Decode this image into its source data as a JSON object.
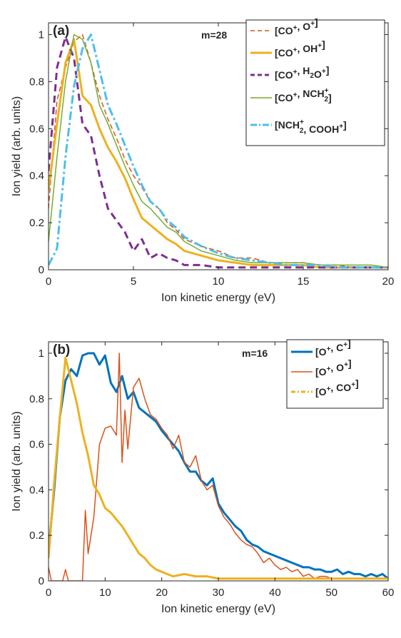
{
  "chart_data": [
    {
      "type": "line",
      "panel_label": "(a)",
      "annotation": "m=28",
      "xlabel": "Ion kinetic energy (eV)",
      "ylabel": "Ion yield (arb. units)",
      "xlim": [
        0,
        20
      ],
      "ylim": [
        0,
        1.05
      ],
      "xticks": [
        "0",
        "5",
        "10",
        "15",
        "20"
      ],
      "yticks": [
        "0",
        "0.2",
        "0.4",
        "0.6",
        "0.8",
        "1"
      ],
      "grid": false,
      "legend_position": "top-right",
      "series": [
        {
          "name": "[CO⁺, O⁺]",
          "legend": [
            [
              "[CO",
              ""
            ],
            [
              "+",
              "sup"
            ],
            [
              ", O",
              ""
            ],
            [
              "+",
              "sup"
            ],
            [
              "]",
              ""
            ]
          ],
          "color": "#D95319",
          "style": "dashed",
          "width": 1.5,
          "x": [
            0,
            0.5,
            1,
            1.5,
            2,
            2.5,
            3,
            3.5,
            4,
            4.5,
            5,
            5.5,
            6,
            6.5,
            7,
            7.5,
            8,
            9,
            10,
            11,
            12,
            13,
            14,
            15,
            16,
            17,
            18,
            19,
            20
          ],
          "y": [
            0.26,
            0.72,
            0.86,
            0.97,
            1.0,
            0.88,
            0.74,
            0.64,
            0.56,
            0.47,
            0.4,
            0.35,
            0.29,
            0.26,
            0.2,
            0.17,
            0.13,
            0.1,
            0.08,
            0.05,
            0.05,
            0.03,
            0.03,
            0.03,
            0.02,
            0.02,
            0.01,
            0.01,
            0.01
          ]
        },
        {
          "name": "[CO⁺, OH⁺]",
          "legend": [
            [
              "[CO",
              ""
            ],
            [
              "+",
              "sup"
            ],
            [
              ", OH",
              ""
            ],
            [
              "+",
              "sup"
            ],
            [
              "]",
              ""
            ]
          ],
          "color": "#EDB120",
          "style": "solid",
          "width": 3,
          "x": [
            0,
            0.5,
            1,
            1.5,
            2,
            2.5,
            3,
            3.5,
            4,
            4.5,
            5,
            5.5,
            6,
            6.5,
            7,
            7.5,
            8,
            9,
            10,
            11,
            12,
            13,
            14,
            15,
            16,
            17,
            18,
            19,
            20
          ],
          "y": [
            0.34,
            0.62,
            0.88,
            0.98,
            0.74,
            0.7,
            0.6,
            0.52,
            0.46,
            0.39,
            0.3,
            0.22,
            0.19,
            0.16,
            0.13,
            0.11,
            0.08,
            0.06,
            0.04,
            0.03,
            0.02,
            0.02,
            0.02,
            0.02,
            0.01,
            0.01,
            0.01,
            0.01,
            0.01
          ]
        },
        {
          "name": "[CO⁺, H₂O⁺]",
          "legend": [
            [
              "[CO",
              ""
            ],
            [
              "+",
              "sup"
            ],
            [
              ", H",
              ""
            ],
            [
              "2",
              "sub"
            ],
            [
              "O",
              ""
            ],
            [
              "+",
              "sup"
            ],
            [
              "]",
              ""
            ]
          ],
          "color": "#7E2F8E",
          "style": "dashed-heavy",
          "width": 3,
          "x": [
            0,
            0.5,
            1,
            1.5,
            2,
            2.5,
            3,
            3.5,
            4,
            4.5,
            5,
            5.5,
            6,
            6.5,
            7,
            7.5,
            8,
            9,
            10,
            11,
            12,
            13,
            14,
            15,
            16,
            17,
            18,
            19,
            20
          ],
          "y": [
            0.42,
            0.86,
            0.99,
            0.9,
            0.62,
            0.57,
            0.4,
            0.26,
            0.21,
            0.16,
            0.08,
            0.13,
            0.05,
            0.07,
            0.05,
            0.04,
            0.02,
            0.02,
            0.01,
            0.01,
            0.01,
            0.01,
            0.01,
            0.01,
            0.01,
            0.01,
            0.01,
            0.01,
            0.01
          ]
        },
        {
          "name": "[CO⁺, NCH₂⁺]",
          "legend": [
            [
              "[CO",
              ""
            ],
            [
              "+",
              "sup"
            ],
            [
              ", NCH",
              ""
            ],
            [
              "+",
              "subsup",
              "2"
            ],
            [
              "]",
              ""
            ]
          ],
          "color": "#77AC30",
          "style": "solid",
          "width": 1.5,
          "x": [
            0,
            0.5,
            1,
            1.5,
            2,
            2.5,
            3,
            3.5,
            4,
            4.5,
            5,
            5.5,
            6,
            6.5,
            7,
            7.5,
            8,
            9,
            10,
            11,
            12,
            13,
            14,
            15,
            16,
            17,
            18,
            19,
            20
          ],
          "y": [
            0.12,
            0.48,
            0.8,
            1.0,
            0.98,
            0.88,
            0.7,
            0.62,
            0.53,
            0.44,
            0.36,
            0.29,
            0.26,
            0.22,
            0.18,
            0.16,
            0.12,
            0.08,
            0.06,
            0.04,
            0.03,
            0.03,
            0.03,
            0.03,
            0.02,
            0.02,
            0.02,
            0.02,
            0.01
          ]
        },
        {
          "name": "[NCH₂⁺, COOH⁺]",
          "legend": [
            [
              "[NCH",
              ""
            ],
            [
              "+",
              "subsup",
              "2"
            ],
            [
              ", COOH",
              ""
            ],
            [
              "+",
              "sup"
            ],
            [
              "]",
              ""
            ]
          ],
          "color": "#4DBEEE",
          "style": "dashdot",
          "width": 3,
          "x": [
            0,
            0.5,
            1,
            1.5,
            2,
            2.5,
            3,
            3.5,
            4,
            4.5,
            5,
            5.5,
            6,
            6.5,
            7,
            7.5,
            8,
            9,
            10,
            11,
            12,
            13,
            14,
            15,
            16,
            17,
            18,
            19,
            20
          ],
          "y": [
            0.02,
            0.09,
            0.48,
            0.78,
            0.94,
            1.0,
            0.85,
            0.7,
            0.62,
            0.53,
            0.44,
            0.36,
            0.29,
            0.26,
            0.21,
            0.18,
            0.14,
            0.1,
            0.07,
            0.05,
            0.04,
            0.03,
            0.02,
            0.02,
            0.02,
            0.01,
            0.01,
            0.01,
            0.01
          ]
        }
      ]
    },
    {
      "type": "line",
      "panel_label": "(b)",
      "annotation": "m=16",
      "xlabel": "Ion kinetic energy (eV)",
      "ylabel": "Ion yield (arb. units)",
      "xlim": [
        0,
        60
      ],
      "ylim": [
        0,
        1.05
      ],
      "xticks": [
        "0",
        "10",
        "20",
        "30",
        "40",
        "50",
        "60"
      ],
      "yticks": [
        "0",
        "0.2",
        "0.4",
        "0.6",
        "0.8",
        "1"
      ],
      "grid": false,
      "legend_position": "top-right",
      "series": [
        {
          "name": "[O⁺, C⁺]",
          "legend": [
            [
              "[O",
              ""
            ],
            [
              "+",
              "sup"
            ],
            [
              ", C",
              ""
            ],
            [
              "+",
              "sup"
            ],
            [
              "]",
              ""
            ]
          ],
          "color": "#0072BD",
          "style": "solid",
          "width": 3,
          "x": [
            0,
            1,
            2,
            3,
            4,
            5,
            6,
            7,
            8,
            9,
            10,
            11,
            12,
            13,
            14,
            15,
            16,
            17,
            18,
            19,
            20,
            21,
            22,
            23,
            24,
            25,
            26,
            27,
            28,
            29,
            30,
            31,
            32,
            33,
            34,
            35,
            36,
            37,
            38,
            39,
            40,
            41,
            42,
            43,
            44,
            45,
            46,
            47,
            48,
            49,
            50,
            51,
            52,
            53,
            54,
            55,
            56,
            57,
            58,
            59,
            60
          ],
          "y": [
            0.13,
            0.4,
            0.72,
            0.88,
            0.93,
            0.9,
            0.99,
            1.0,
            1.0,
            0.95,
            0.99,
            0.87,
            0.83,
            0.9,
            0.8,
            0.83,
            0.76,
            0.74,
            0.72,
            0.7,
            0.66,
            0.63,
            0.6,
            0.57,
            0.52,
            0.48,
            0.48,
            0.44,
            0.42,
            0.45,
            0.34,
            0.3,
            0.27,
            0.24,
            0.22,
            0.18,
            0.16,
            0.15,
            0.13,
            0.12,
            0.11,
            0.1,
            0.09,
            0.08,
            0.07,
            0.06,
            0.06,
            0.05,
            0.05,
            0.04,
            0.04,
            0.05,
            0.03,
            0.04,
            0.03,
            0.03,
            0.02,
            0.03,
            0.02,
            0.03,
            0.01
          ]
        },
        {
          "name": "[O⁺, O⁺]",
          "legend": [
            [
              "[O",
              ""
            ],
            [
              "+",
              "sup"
            ],
            [
              ", O",
              ""
            ],
            [
              "+",
              "sup"
            ],
            [
              "]",
              ""
            ]
          ],
          "color": "#D95319",
          "style": "solid",
          "width": 1.5,
          "x": [
            0,
            0.5,
            1,
            1.5,
            2,
            2.5,
            3,
            3.5,
            4,
            6,
            6.5,
            7,
            8,
            9,
            10,
            11,
            12,
            12.5,
            13,
            13.5,
            14,
            15,
            16,
            17,
            18,
            19,
            20,
            21,
            22,
            23,
            24,
            25,
            26,
            27,
            28,
            29,
            30,
            31,
            32,
            33,
            34,
            35,
            36,
            37,
            38,
            39,
            40,
            41,
            42,
            43,
            44,
            45,
            46,
            47,
            48,
            49,
            50,
            52,
            54,
            56,
            58,
            60
          ],
          "y": [
            0.06,
            0,
            0,
            0,
            0,
            0,
            0.05,
            0,
            0,
            0,
            0.31,
            0.12,
            0.28,
            0.6,
            0.67,
            0.68,
            0.64,
            1.0,
            0.52,
            0.75,
            0.58,
            0.85,
            0.89,
            0.8,
            0.73,
            0.71,
            0.67,
            0.64,
            0.58,
            0.64,
            0.52,
            0.5,
            0.55,
            0.44,
            0.4,
            0.42,
            0.33,
            0.28,
            0.25,
            0.21,
            0.18,
            0.16,
            0.15,
            0.12,
            0.08,
            0.1,
            0.07,
            0.05,
            0.06,
            0.04,
            0.05,
            0.02,
            0.03,
            0.01,
            0.02,
            0.02,
            0.01,
            0.01,
            0.01,
            0.01,
            0.01,
            0.01
          ]
        },
        {
          "name": "[O⁺, CO⁺]",
          "legend": [
            [
              "[O",
              ""
            ],
            [
              "+",
              "sup"
            ],
            [
              ", CO",
              ""
            ],
            [
              "+",
              "sup"
            ],
            [
              "]",
              ""
            ]
          ],
          "color": "#EDB120",
          "style": "dashdot-solid",
          "width": 3,
          "x": [
            0,
            1,
            2,
            3,
            4,
            5,
            6,
            7,
            8,
            9,
            10,
            11,
            12,
            13,
            14,
            15,
            16,
            17,
            18,
            19,
            20,
            22,
            24,
            26,
            28,
            30,
            32,
            34,
            36,
            38,
            40,
            45,
            50,
            55,
            60
          ],
          "y": [
            0.1,
            0.43,
            0.72,
            0.98,
            0.88,
            0.78,
            0.65,
            0.55,
            0.42,
            0.38,
            0.32,
            0.3,
            0.27,
            0.24,
            0.2,
            0.16,
            0.12,
            0.1,
            0.07,
            0.05,
            0.04,
            0.02,
            0.03,
            0.02,
            0.02,
            0.01,
            0.01,
            0.01,
            0.01,
            0.01,
            0.01,
            0.01,
            0.01,
            0.01,
            0.01
          ]
        }
      ]
    }
  ]
}
